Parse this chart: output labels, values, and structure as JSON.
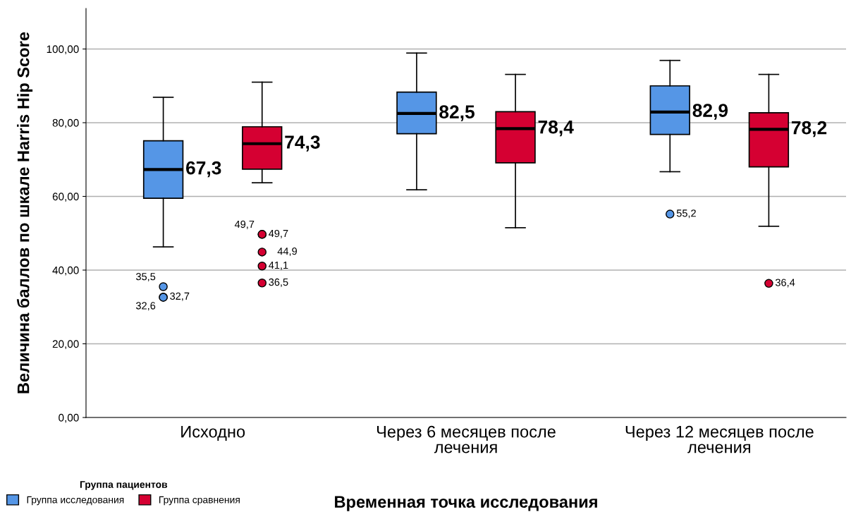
{
  "chart_data": {
    "type": "box",
    "xlabel": "Временная точка исследования",
    "ylabel": "Величина баллов по шкале Harris Hip Score",
    "legend_title": "Группа пациентов",
    "legend": "bottom left",
    "grid": "y",
    "categories": [
      "Исходно",
      "Через 6 месяцев после лечения",
      "Через 12 месяцев после лечения"
    ],
    "ylim": [
      0,
      111
    ],
    "yticks": [
      {
        "value": 0,
        "label": "0,00"
      },
      {
        "value": 20,
        "label": "20,00"
      },
      {
        "value": 40,
        "label": "40,00"
      },
      {
        "value": 60,
        "label": "60,00"
      },
      {
        "value": 80,
        "label": "80,00"
      },
      {
        "value": 100,
        "label": "100,00"
      }
    ],
    "series": [
      {
        "name": "Группа исследования",
        "color": "#5596e6",
        "boxes": [
          {
            "low": 46.3,
            "q1": 59.5,
            "median": 67.3,
            "q3": 75.1,
            "high": 86.9,
            "outliers": [
              35.5,
              32.7,
              32.6
            ]
          },
          {
            "low": 61.8,
            "q1": 77.0,
            "median": 82.5,
            "q3": 88.3,
            "high": 98.9
          },
          {
            "low": 66.7,
            "q1": 76.8,
            "median": 82.9,
            "q3": 90.0,
            "high": 96.9,
            "outliers": [
              55.2
            ]
          }
        ]
      },
      {
        "name": "Группа сравнения",
        "color": "#d50032",
        "boxes": [
          {
            "low": 63.7,
            "q1": 67.4,
            "median": 74.3,
            "q3": 78.9,
            "high": 91.0,
            "outliers": [
              49.7,
              49.7,
              44.9,
              41.1,
              36.5
            ]
          },
          {
            "low": 51.5,
            "q1": 69.1,
            "median": 78.4,
            "q3": 83.0,
            "high": 93.1
          },
          {
            "low": 51.9,
            "q1": 68.0,
            "median": 78.2,
            "q3": 82.7,
            "high": 93.1,
            "outliers": [
              36.4
            ]
          }
        ]
      }
    ],
    "annotations": [
      "67,3",
      "74,3",
      "82,5",
      "78,4",
      "82,9",
      "78,2",
      "35,5",
      "32,7",
      "32,6",
      "49,7",
      "49,7",
      "44,9",
      "41,1",
      "36,5",
      "55,2",
      "36,4"
    ]
  }
}
